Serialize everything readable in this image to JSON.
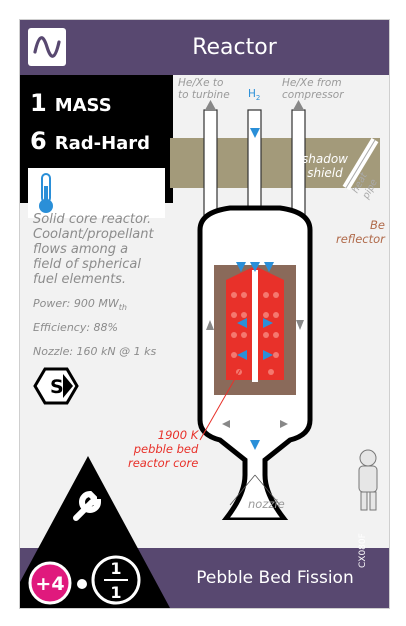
{
  "card": {
    "title": "Reactor",
    "stats": {
      "mass_value": "1",
      "mass_label": "MASS",
      "rad_value": "6",
      "rad_label": "Rad-Hard"
    },
    "description": [
      "Solid core reactor.",
      "Coolant/propellant",
      "flows among a",
      "field of spherical",
      "fuel elements."
    ],
    "power": "Power: 900 MW",
    "power_sub": "th",
    "efficiency": "Efficiency: 88%",
    "nozzle": "Nozzle: 160 kN @ 1 ks",
    "type_badge": "S",
    "build_cost": "+4",
    "therm_top": "1",
    "therm_bottom": "1",
    "name": "Pebble Bed Fission",
    "code": "CX080F"
  },
  "diagram": {
    "he_xe_turbine": [
      "He/Xe to",
      "to turbine"
    ],
    "h2": "H",
    "h2_sub": "2",
    "he_xe_compressor": [
      "He/Xe from",
      "compressor"
    ],
    "shadow_shield": [
      "shadow",
      "shield"
    ],
    "heat_pipe": "heat pipe",
    "be_reflector": [
      "Be",
      "reflector"
    ],
    "core_label": [
      "1900 K",
      "pebble bed",
      "reactor core"
    ],
    "nozzle_label": "nozzle"
  },
  "colors": {
    "header": "#584870",
    "shield": "#a39a7a",
    "reflector": "#8a6a5a",
    "pebble": "#e8312a",
    "arrow_blue": "#2a8fd8",
    "badge_pink": "#e0197d"
  },
  "icons": [
    "sine-wave-icon",
    "thermometer-icon",
    "wrench-icon",
    "type-s-hexagon-icon"
  ]
}
